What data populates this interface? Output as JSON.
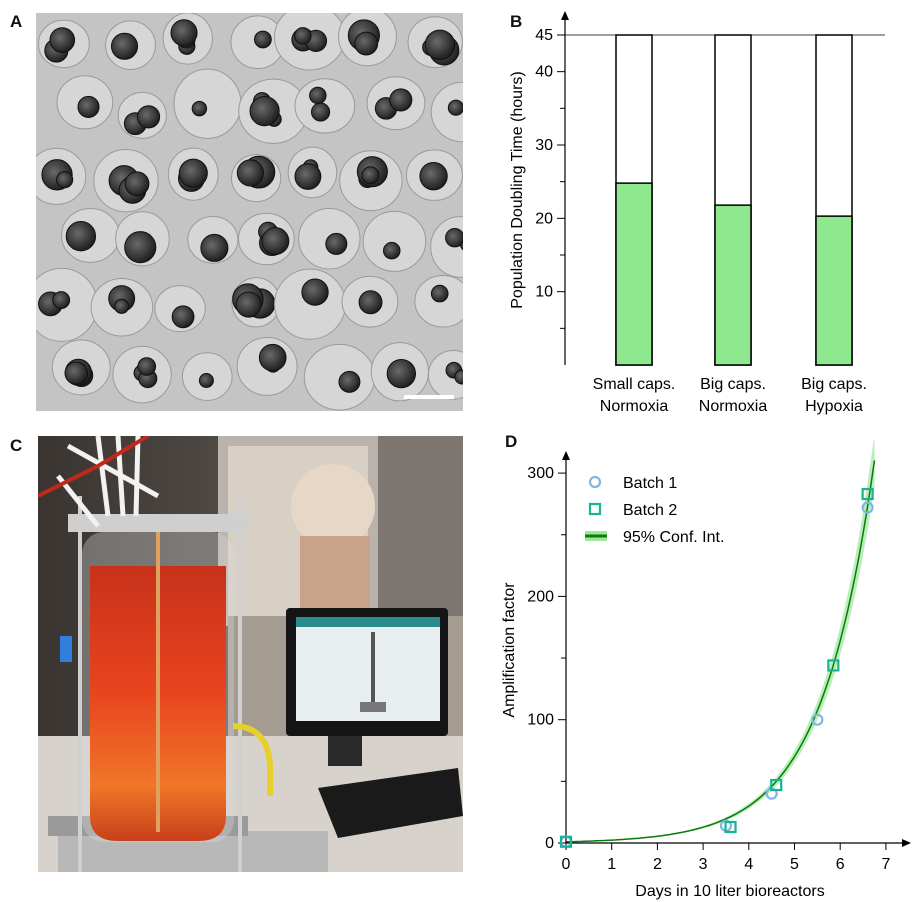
{
  "panels": {
    "a": {
      "label": "A"
    },
    "b": {
      "label": "B"
    },
    "c": {
      "label": "C"
    },
    "d": {
      "label": "D"
    }
  },
  "colors": {
    "bar_fill": "#8ee88e",
    "batch1": "#7fb6e6",
    "batch2": "#18b394",
    "fit_line": "#0a7a0a",
    "ci_band": "#9be79b",
    "liquid": "#e0401c",
    "axis": "#000000"
  },
  "chart_data": [
    {
      "type": "bar",
      "panel": "B",
      "categories": [
        [
          "Small caps.",
          "Normoxia"
        ],
        [
          "Big caps.",
          "Normoxia"
        ],
        [
          "Big caps.",
          "Hypoxia"
        ]
      ],
      "values": [
        24.8,
        21.8,
        20.3
      ],
      "bar_max": 45,
      "ylabel": "Population Doubling Time (hours)",
      "yticks": [
        10,
        20,
        30,
        40,
        45
      ],
      "ylim": [
        0,
        45
      ],
      "grid": false
    },
    {
      "type": "scatter",
      "panel": "D",
      "xlabel": "Days in 10 liter bioreactors",
      "ylabel": "Amplification factor",
      "xticks": [
        0,
        1,
        2,
        3,
        4,
        5,
        6,
        7
      ],
      "yticks": [
        0,
        100,
        200,
        300
      ],
      "xlim": [
        0,
        7.4
      ],
      "ylim": [
        0,
        305
      ],
      "legend_position": "top-left",
      "series": [
        {
          "name": "Batch 1",
          "marker": "circle",
          "x": [
            0,
            3.5,
            4.5,
            5.5,
            6.6
          ],
          "y": [
            1,
            14,
            40,
            100,
            272
          ]
        },
        {
          "name": "Batch 2",
          "marker": "square",
          "x": [
            0,
            3.6,
            4.6,
            5.85,
            6.6
          ],
          "y": [
            1,
            13,
            47,
            144,
            283
          ]
        }
      ],
      "fit": {
        "name": "95% Conf. Int.",
        "type": "exponential",
        "a": 1,
        "b": 0.85,
        "x_max": 6.75
      }
    }
  ]
}
